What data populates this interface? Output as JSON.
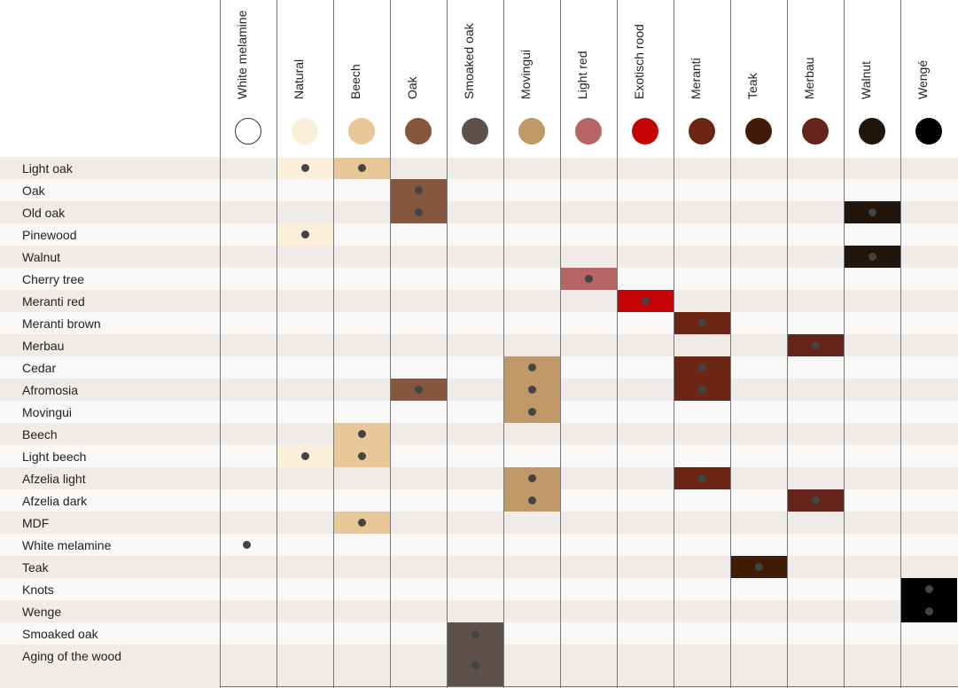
{
  "columns": [
    {
      "label": "White melamine",
      "color": "#ffffff"
    },
    {
      "label": "Natural",
      "color": "#fcefd9"
    },
    {
      "label": "Beech",
      "color": "#e8c898"
    },
    {
      "label": "Oak",
      "color": "#85573b"
    },
    {
      "label": "Smoaked oak",
      "color": "#5e504c"
    },
    {
      "label": "Movingui",
      "color": "#bf9a68"
    },
    {
      "label": "Light red",
      "color": "#b76466"
    },
    {
      "label": "Exotisch rood",
      "color": "#c40304"
    },
    {
      "label": "Meranti",
      "color": "#6c2614"
    },
    {
      "label": "Teak",
      "color": "#421b08"
    },
    {
      "label": "Merbau",
      "color": "#64241a"
    },
    {
      "label": "Walnut",
      "color": "#21160c"
    },
    {
      "label": "Wengé",
      "color": "#000000"
    }
  ],
  "rows": [
    {
      "label": "Light oak",
      "marks": [
        1,
        2
      ]
    },
    {
      "label": "Oak",
      "marks": [
        3
      ]
    },
    {
      "label": "Old oak",
      "marks": [
        3,
        11
      ]
    },
    {
      "label": "Pinewood",
      "marks": [
        1
      ]
    },
    {
      "label": "Walnut",
      "marks": [
        11
      ]
    },
    {
      "label": "Cherry tree",
      "marks": [
        6
      ]
    },
    {
      "label": "Meranti red",
      "marks": [
        7
      ]
    },
    {
      "label": "Meranti brown",
      "marks": [
        8
      ]
    },
    {
      "label": "Merbau",
      "marks": [
        10
      ]
    },
    {
      "label": "Cedar",
      "marks": [
        5,
        8
      ]
    },
    {
      "label": "Afromosia",
      "marks": [
        3,
        5,
        8
      ]
    },
    {
      "label": "Movingui",
      "marks": [
        5
      ]
    },
    {
      "label": "Beech",
      "marks": [
        2
      ]
    },
    {
      "label": "Light beech",
      "marks": [
        1,
        2
      ]
    },
    {
      "label": "Afzelia light",
      "marks": [
        5,
        8
      ]
    },
    {
      "label": "Afzelia dark",
      "marks": [
        5,
        10
      ]
    },
    {
      "label": "MDF",
      "marks": [
        2
      ]
    },
    {
      "label": "White melamine",
      "marks": [
        0
      ]
    },
    {
      "label": "Teak",
      "marks": [
        9
      ]
    },
    {
      "label": "Knots",
      "marks": [
        12
      ]
    },
    {
      "label": "Wenge",
      "marks": [
        12
      ]
    },
    {
      "label": "Smoaked oak",
      "marks": [
        4
      ]
    },
    {
      "label": "Aging of the wood",
      "marks": [
        4
      ]
    }
  ]
}
